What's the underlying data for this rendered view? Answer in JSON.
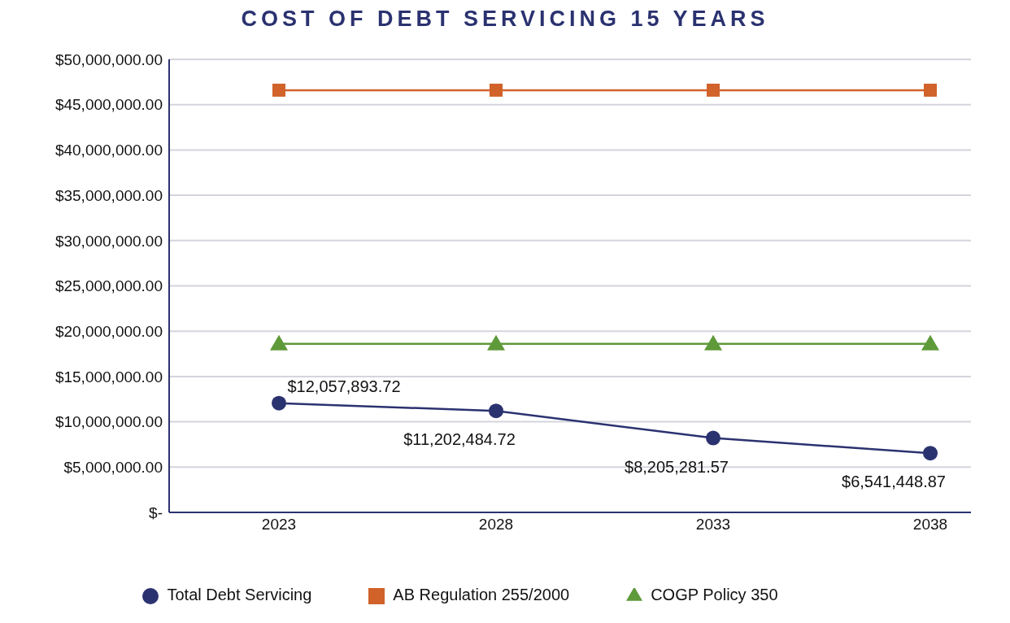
{
  "chart_data": {
    "type": "line",
    "title": "COST OF DEBT SERVICING 15 YEARS",
    "categories": [
      "2023",
      "2028",
      "2033",
      "2038"
    ],
    "series": [
      {
        "name": "Total Debt Servicing",
        "color": "#2b3270",
        "marker": "circle",
        "values": [
          12057893.72,
          11202484.72,
          8205281.57,
          6541448.87
        ],
        "value_labels": [
          "$12,057,893.72",
          "$11,202,484.72",
          "$8,205,281.57",
          "$6,541,448.87"
        ]
      },
      {
        "name": "AB Regulation 255/2000",
        "color": "#d0622a",
        "marker": "square",
        "values": [
          46600000,
          46600000,
          46600000,
          46600000
        ]
      },
      {
        "name": "COGP Policy 350",
        "color": "#5f9a3a",
        "marker": "triangle",
        "values": [
          18600000,
          18600000,
          18600000,
          18600000
        ]
      }
    ],
    "ylim": [
      0,
      50000000
    ],
    "yticks": [
      {
        "value": 0,
        "label": "$-"
      },
      {
        "value": 5000000,
        "label": "$5,000,000.00"
      },
      {
        "value": 10000000,
        "label": "$10,000,000.00"
      },
      {
        "value": 15000000,
        "label": "$15,000,000.00"
      },
      {
        "value": 20000000,
        "label": "$20,000,000.00"
      },
      {
        "value": 25000000,
        "label": "$25,000,000.00"
      },
      {
        "value": 30000000,
        "label": "$30,000,000.00"
      },
      {
        "value": 35000000,
        "label": "$35,000,000.00"
      },
      {
        "value": 40000000,
        "label": "$40,000,000.00"
      },
      {
        "value": 45000000,
        "label": "$45,000,000.00"
      },
      {
        "value": 50000000,
        "label": "$50,000,000.00"
      }
    ],
    "grid": "y",
    "legend": "bottom",
    "line_style": "solid"
  }
}
